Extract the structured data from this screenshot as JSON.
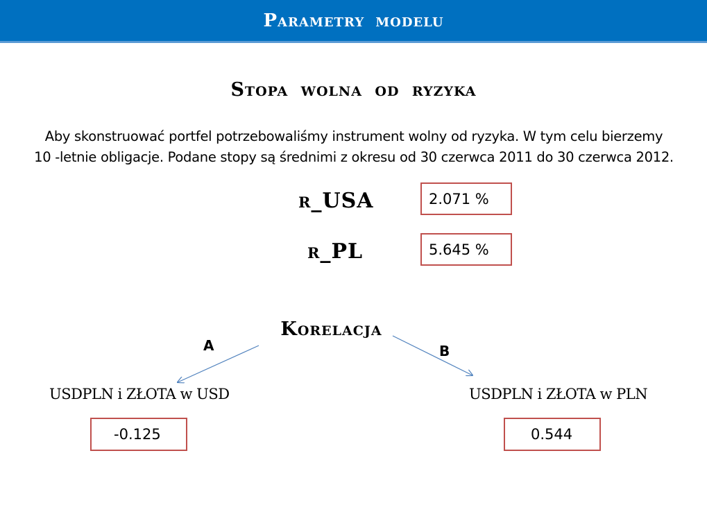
{
  "header": {
    "title": "Parametry modelu",
    "accent_color": "#0070c0"
  },
  "risk_free": {
    "heading": "Stopa wolna od ryzyka",
    "description_line1": "Aby skonstruować portfel potrzebowaliśmy instrument wolny od ryzyka. W tym celu bierzemy",
    "description_line2": "10 -letnie obligacje.  Podane stopy są średnimi z okresu od 30 czerwca 2011 do 30 czerwca 2012.",
    "rates": [
      {
        "label": "r_USA",
        "value": "2.071 %"
      },
      {
        "label": "r_PL",
        "value": "5.645 %"
      }
    ]
  },
  "correlation": {
    "heading": "Korelacja",
    "box_border_color": "#c0504d",
    "arrow_color": "#4f81bd",
    "items": [
      {
        "letter": "A",
        "label": "USDPLN i ZŁOTA w USD",
        "value": "-0.125"
      },
      {
        "letter": "B",
        "label": "USDPLN i ZŁOTA w PLN",
        "value": "0.544"
      }
    ]
  }
}
